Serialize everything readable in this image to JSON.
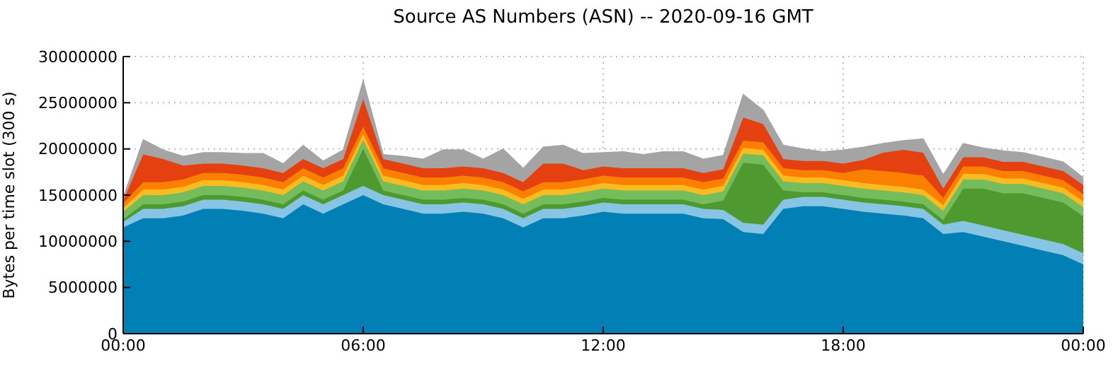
{
  "chart_data": {
    "type": "area",
    "stacked": true,
    "title": "Source AS Numbers (ASN) -- 2020-09-16 GMT",
    "ylabel": "Bytes per time slot (300 s)",
    "x": [
      0,
      0.5,
      1,
      1.5,
      2,
      2.5,
      3,
      3.5,
      4,
      4.5,
      5,
      5.5,
      6,
      6.5,
      7,
      7.5,
      8,
      8.5,
      9,
      9.5,
      10,
      10.5,
      11,
      11.5,
      12,
      12.5,
      13,
      13.5,
      14,
      14.5,
      15,
      15.5,
      16,
      16.5,
      17,
      17.5,
      18,
      18.5,
      19,
      19.5,
      20,
      20.5,
      21,
      21.5,
      22,
      22.5,
      23,
      23.5,
      24
    ],
    "xlim": [
      0,
      24
    ],
    "xticks": [
      {
        "value": 0,
        "label": "00:00"
      },
      {
        "value": 6,
        "label": "06:00"
      },
      {
        "value": 12,
        "label": "12:00"
      },
      {
        "value": 18,
        "label": "18:00"
      },
      {
        "value": 24,
        "label": "00:00"
      }
    ],
    "ylim": [
      0,
      30000000
    ],
    "yticks": [
      0,
      5000000,
      10000000,
      15000000,
      20000000,
      25000000,
      30000000
    ],
    "grid": true,
    "series": [
      {
        "color": "#0080b4",
        "values": [
          11500000.0,
          12500000.0,
          12500000.0,
          12800000.0,
          13500000.0,
          13500000.0,
          13300000.0,
          13000000.0,
          12500000.0,
          14000000.0,
          13000000.0,
          14000000.0,
          15000000.0,
          14000000.0,
          13500000.0,
          13000000.0,
          13000000.0,
          13200000.0,
          13000000.0,
          12500000.0,
          11500000.0,
          12500000.0,
          12500000.0,
          12800000.0,
          13200000.0,
          13000000.0,
          13000000.0,
          13000000.0,
          13000000.0,
          12500000.0,
          12400000.0,
          11000000.0,
          10800000.0,
          13500000.0,
          13800000.0,
          13800000.0,
          13500000.0,
          13200000.0,
          13000000.0,
          12800000.0,
          12500000.0,
          10800000.0,
          11000000.0,
          10500000.0,
          10000000.0,
          9500000.0,
          9000000.0,
          8500000.0,
          7500000.0
        ]
      },
      {
        "color": "#88c4e4",
        "values": [
          600000.0,
          1000000.0,
          1000000.0,
          1000000.0,
          1000000.0,
          1000000.0,
          1000000.0,
          1000000.0,
          1000000.0,
          1000000.0,
          1000000.0,
          1000000.0,
          1000000.0,
          1000000.0,
          1000000.0,
          1000000.0,
          1000000.0,
          1000000.0,
          1000000.0,
          1000000.0,
          1000000.0,
          1000000.0,
          1000000.0,
          1000000.0,
          1000000.0,
          1000000.0,
          1000000.0,
          1000000.0,
          1000000.0,
          1000000.0,
          1000000.0,
          1000000.0,
          1000000.0,
          1000000.0,
          1000000.0,
          1000000.0,
          1000000.0,
          1000000.0,
          1000000.0,
          1000000.0,
          1000000.0,
          1000000.0,
          1200000.0,
          1200000.0,
          1200000.0,
          1200000.0,
          1200000.0,
          1200000.0,
          1200000.0
        ]
      },
      {
        "color": "#4e9a30",
        "values": [
          300000.0,
          500000.0,
          500000.0,
          500000.0,
          500000.0,
          500000.0,
          500000.0,
          500000.0,
          500000.0,
          500000.0,
          500000.0,
          500000.0,
          4000000.0,
          500000.0,
          500000.0,
          500000.0,
          500000.0,
          500000.0,
          500000.0,
          500000.0,
          500000.0,
          500000.0,
          500000.0,
          500000.0,
          500000.0,
          500000.0,
          500000.0,
          500000.0,
          500000.0,
          500000.0,
          1000000.0,
          6500000.0,
          6500000.0,
          1000000.0,
          500000.0,
          500000.0,
          500000.0,
          500000.0,
          500000.0,
          500000.0,
          500000.0,
          500000.0,
          3500000.0,
          4000000.0,
          4000000.0,
          4500000.0,
          4500000.0,
          4500000.0,
          4000000.0
        ]
      },
      {
        "color": "#74bc5c",
        "values": [
          800000.0,
          1000000.0,
          1000000.0,
          1000000.0,
          1000000.0,
          1000000.0,
          1000000.0,
          1000000.0,
          1000000.0,
          1000000.0,
          1000000.0,
          1000000.0,
          1000000.0,
          1000000.0,
          1000000.0,
          1000000.0,
          1000000.0,
          1000000.0,
          1000000.0,
          1000000.0,
          1000000.0,
          1000000.0,
          1000000.0,
          1000000.0,
          1000000.0,
          1000000.0,
          1000000.0,
          1000000.0,
          1000000.0,
          1000000.0,
          1000000.0,
          1000000.0,
          1000000.0,
          1000000.0,
          1000000.0,
          1000000.0,
          1000000.0,
          1000000.0,
          1000000.0,
          1000000.0,
          1000000.0,
          1000000.0,
          1000000.0,
          1000000.0,
          1000000.0,
          1000000.0,
          1000000.0,
          1000000.0,
          1000000.0
        ]
      },
      {
        "color": "#f8bc20",
        "values": [
          400000.0,
          600000.0,
          600000.0,
          600000.0,
          600000.0,
          600000.0,
          600000.0,
          600000.0,
          600000.0,
          600000.0,
          600000.0,
          600000.0,
          600000.0,
          600000.0,
          600000.0,
          600000.0,
          600000.0,
          600000.0,
          600000.0,
          600000.0,
          600000.0,
          600000.0,
          600000.0,
          600000.0,
          600000.0,
          600000.0,
          600000.0,
          600000.0,
          600000.0,
          600000.0,
          600000.0,
          600000.0,
          600000.0,
          600000.0,
          600000.0,
          600000.0,
          600000.0,
          600000.0,
          600000.0,
          600000.0,
          600000.0,
          600000.0,
          600000.0,
          600000.0,
          600000.0,
          600000.0,
          600000.0,
          600000.0,
          600000.0
        ]
      },
      {
        "color": "#fc8000",
        "values": [
          500000.0,
          800000.0,
          800000.0,
          800000.0,
          800000.0,
          800000.0,
          800000.0,
          800000.0,
          800000.0,
          800000.0,
          800000.0,
          800000.0,
          800000.0,
          800000.0,
          800000.0,
          800000.0,
          800000.0,
          800000.0,
          800000.0,
          800000.0,
          800000.0,
          800000.0,
          800000.0,
          800000.0,
          800000.0,
          800000.0,
          800000.0,
          800000.0,
          800000.0,
          800000.0,
          800000.0,
          800000.0,
          800000.0,
          800000.0,
          800000.0,
          800000.0,
          800000.0,
          1500000.0,
          1500000.0,
          1500000.0,
          1500000.0,
          800000.0,
          800000.0,
          800000.0,
          800000.0,
          800000.0,
          800000.0,
          800000.0,
          800000.0
        ]
      },
      {
        "color": "#e44010",
        "values": [
          300000.0,
          3000000.0,
          2500000.0,
          1500000.0,
          1000000.0,
          1000000.0,
          1000000.0,
          1000000.0,
          1000000.0,
          1000000.0,
          1000000.0,
          1000000.0,
          3000000.0,
          1000000.0,
          1000000.0,
          1000000.0,
          1000000.0,
          1000000.0,
          1000000.0,
          1000000.0,
          1000000.0,
          2000000.0,
          2000000.0,
          1000000.0,
          1000000.0,
          1000000.0,
          1000000.0,
          1000000.0,
          1000000.0,
          1000000.0,
          1000000.0,
          2500000.0,
          2000000.0,
          1000000.0,
          1000000.0,
          1000000.0,
          1000000.0,
          1000000.0,
          2000000.0,
          2500000.0,
          2500000.0,
          1000000.0,
          1000000.0,
          1000000.0,
          1000000.0,
          1000000.0,
          1000000.0,
          1000000.0,
          1000000.0
        ]
      },
      {
        "color": "#a4a4a4",
        "values": [
          300000.0,
          1600000.0,
          1000000.0,
          1000000.0,
          1200000.0,
          1200000.0,
          1300000.0,
          1600000.0,
          1000000.0,
          1500000.0,
          800000.0,
          1000000.0,
          2000000.0,
          500000.0,
          800000.0,
          1000000.0,
          2000000.0,
          1800000.0,
          1000000.0,
          2600000.0,
          1500000.0,
          1800000.0,
          2000000.0,
          1800000.0,
          1500000.0,
          1800000.0,
          1500000.0,
          1800000.0,
          1800000.0,
          1500000.0,
          1500000.0,
          2500000.0,
          1500000.0,
          1500000.0,
          1300000.0,
          1000000.0,
          1500000.0,
          1400000.0,
          1000000.0,
          1000000.0,
          1500000.0,
          1500000.0,
          1500000.0,
          1000000.0,
          1200000.0,
          1000000.0,
          1000000.0,
          1000000.0,
          800000.0
        ]
      }
    ]
  }
}
